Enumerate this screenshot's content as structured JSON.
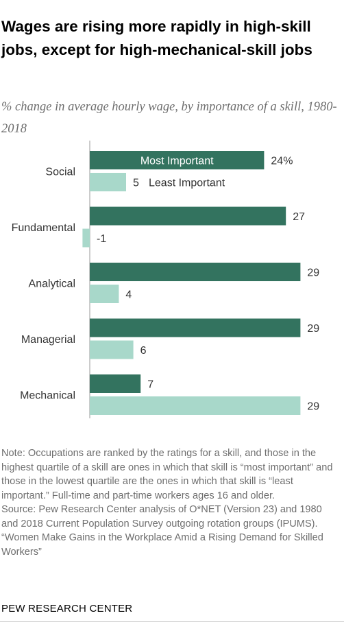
{
  "title": "Wages are rising more rapidly in high-skill jobs, except for high-mechanical-skill jobs",
  "subtitle": "% change in average hourly wage, by importance of a skill, 1980-2018",
  "notes": {
    "note": "Note: Occupations are ranked by the ratings for a skill, and those in the highest quartile of a skill are ones in which that skill is “most important” and those in the lowest quartile are the ones in which that skill is “least important.” Full-time and part-time workers ages 16 and older.",
    "source": "Source: Pew Research Center analysis of O*NET (Version 23) and 1980 and 2018 Current Population Survey outgoing rotation groups (IPUMS).",
    "report": "“Women Make Gains in the Workplace Amid a Rising Demand for Skilled Workers”"
  },
  "brand": "PEW RESEARCH CENTER",
  "chart_data": {
    "type": "bar",
    "orientation": "horizontal",
    "title": "Wages are rising more rapidly in high-skill jobs, except for high-mechanical-skill jobs",
    "subtitle": "% change in average hourly wage, by importance of a skill, 1980-2018",
    "categories": [
      "Social",
      "Fundamental",
      "Analytical",
      "Managerial",
      "Mechanical"
    ],
    "series": [
      {
        "name": "Most Important",
        "color": "#33735f",
        "values": [
          24,
          27,
          29,
          29,
          7
        ],
        "labels": [
          "24%",
          "27",
          "29",
          "29",
          "7"
        ]
      },
      {
        "name": "Least Important",
        "color": "#a8d8ca",
        "values": [
          5,
          -1,
          4,
          6,
          29
        ],
        "labels": [
          "5",
          "-1",
          "4",
          "6",
          "29"
        ]
      }
    ],
    "legend": "inline on first category",
    "xlim": [
      -1,
      29
    ],
    "baseline_color": "#9a9a9a",
    "grid": false
  }
}
